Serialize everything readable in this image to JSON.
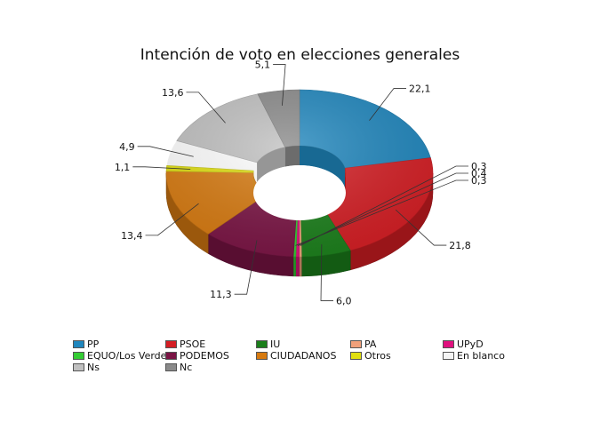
{
  "chart_data": {
    "type": "pie",
    "title": "Intención de voto en elecciones generales",
    "categories": [
      "PP",
      "PSOE",
      "IU",
      "PA",
      "UPyD",
      "EQUO/Los Verdes",
      "PODEMOS",
      "CIUDADANOS",
      "Otros",
      "En blanco",
      "Ns",
      "Nc"
    ],
    "values": [
      22.1,
      21.8,
      6.0,
      0.3,
      0.4,
      0.3,
      11.3,
      13.4,
      1.1,
      4.9,
      13.6,
      5.1
    ],
    "value_labels": [
      "22,1",
      "21,8",
      "6,0",
      "0,3",
      "0,4",
      "0,3",
      "11,3",
      "13,4",
      "1,1",
      "4,9",
      "13,6",
      "5,1"
    ],
    "colors": [
      "#1f86bd",
      "#d41d23",
      "#1b7f1b",
      "#f0a07a",
      "#e0107e",
      "#33cc33",
      "#7a1444",
      "#d77a10",
      "#e0df10",
      "#f4f4f4",
      "#c0c0c0",
      "#8a8a8a"
    ],
    "render_order": [
      0,
      1,
      2,
      3,
      4,
      5,
      6,
      7,
      8,
      10,
      11
    ],
    "style": "3d-donut",
    "legend_position": "bottom"
  }
}
